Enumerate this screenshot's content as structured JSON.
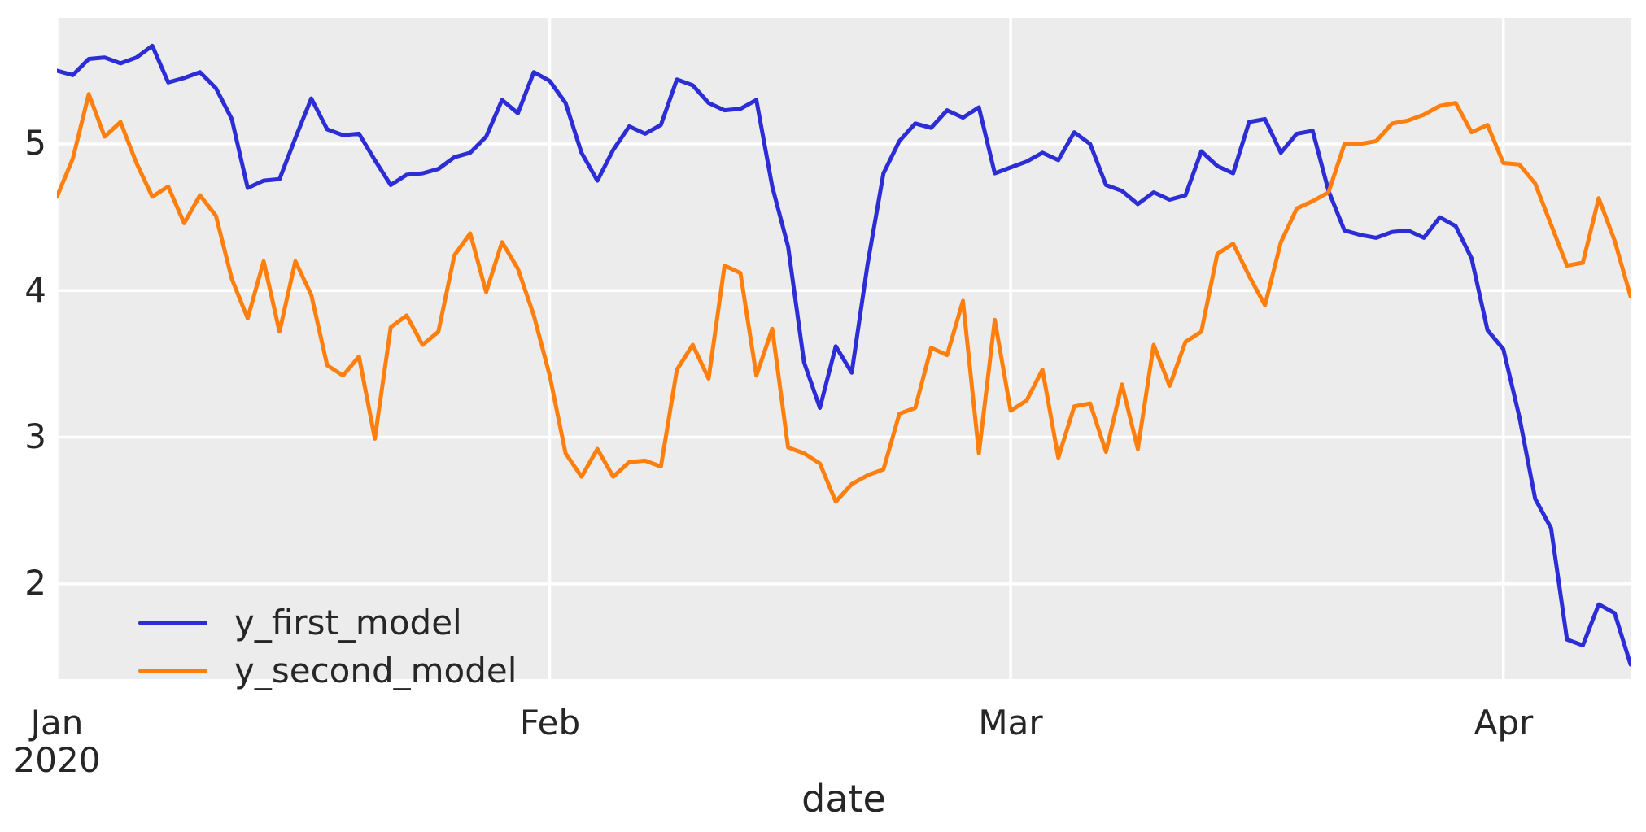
{
  "figure": {
    "background": "#ffffff",
    "plot_background": "#ececec",
    "grid_color": "#ffffff",
    "text_color": "#262626"
  },
  "axes": {
    "xlabel": "date",
    "y_ticks": [
      {
        "label": "5",
        "value": 5
      },
      {
        "label": "4",
        "value": 4
      },
      {
        "label": "3",
        "value": 3
      },
      {
        "label": "2",
        "value": 2
      }
    ],
    "x_ticks": [
      {
        "label": "Jan",
        "sub": "2020",
        "day_index": 0
      },
      {
        "label": "Feb",
        "sub": "",
        "day_index": 31
      },
      {
        "label": "Mar",
        "sub": "",
        "day_index": 60
      },
      {
        "label": "Apr",
        "sub": "",
        "day_index": 91
      }
    ]
  },
  "legend": {
    "items": [
      {
        "label": "y_first_model",
        "color": "#2d2dd6"
      },
      {
        "label": "y_second_model",
        "color": "#ff7f0e"
      }
    ]
  },
  "chart_data": {
    "type": "line",
    "title": "",
    "xlabel": "date",
    "ylabel": "",
    "x_start_date": "2020-01-01",
    "x_frequency": "daily",
    "x_end_date": "2020-04-09",
    "n_points": 100,
    "ylim": [
      1.35,
      5.86
    ],
    "xlim_days": [
      0,
      99
    ],
    "grid": true,
    "legend_position": "lower left",
    "series": [
      {
        "name": "y_first_model",
        "color": "#2d2dd6",
        "values": [
          5.5,
          5.47,
          5.58,
          5.59,
          5.55,
          5.59,
          5.67,
          5.42,
          5.45,
          5.49,
          5.38,
          5.17,
          4.7,
          4.75,
          4.76,
          5.04,
          5.31,
          5.1,
          5.06,
          5.07,
          4.89,
          4.72,
          4.79,
          4.8,
          4.83,
          4.91,
          4.94,
          5.05,
          5.3,
          5.21,
          5.49,
          5.43,
          5.28,
          4.94,
          4.75,
          4.96,
          5.12,
          5.07,
          5.13,
          5.44,
          5.4,
          5.28,
          5.23,
          5.24,
          5.3,
          4.71,
          4.3,
          3.51,
          3.2,
          3.62,
          3.44,
          4.18,
          4.8,
          5.02,
          5.14,
          5.11,
          5.23,
          5.18,
          5.25,
          4.8,
          4.84,
          4.88,
          4.94,
          4.89,
          5.08,
          5.0,
          4.72,
          4.68,
          4.59,
          4.67,
          4.62,
          4.65,
          4.95,
          4.85,
          4.8,
          5.15,
          5.17,
          4.94,
          5.07,
          5.09,
          4.68,
          4.41,
          4.38,
          4.36,
          4.4,
          4.41,
          4.36,
          4.5,
          4.44,
          4.22,
          3.73,
          3.6,
          3.14,
          2.58,
          2.38,
          1.62,
          1.58,
          1.86,
          1.8,
          1.45
        ]
      },
      {
        "name": "y_second_model",
        "color": "#ff7f0e",
        "values": [
          4.64,
          4.9,
          5.34,
          5.05,
          5.15,
          4.87,
          4.64,
          4.71,
          4.46,
          4.65,
          4.51,
          4.08,
          3.81,
          4.2,
          3.72,
          4.2,
          3.97,
          3.49,
          3.42,
          3.55,
          2.99,
          3.75,
          3.83,
          3.63,
          3.72,
          4.24,
          4.39,
          3.99,
          4.33,
          4.15,
          3.83,
          3.42,
          2.89,
          2.73,
          2.92,
          2.73,
          2.83,
          2.84,
          2.8,
          3.46,
          3.63,
          3.4,
          4.17,
          4.12,
          3.42,
          3.74,
          2.93,
          2.89,
          2.82,
          2.56,
          2.68,
          2.74,
          2.78,
          3.16,
          3.2,
          3.61,
          3.56,
          3.93,
          2.89,
          3.8,
          3.18,
          3.25,
          3.46,
          2.86,
          3.21,
          3.23,
          2.9,
          3.36,
          2.92,
          3.63,
          3.35,
          3.65,
          3.72,
          4.25,
          4.32,
          4.1,
          3.9,
          4.33,
          4.56,
          4.61,
          4.67,
          5.0,
          5.0,
          5.02,
          5.14,
          5.16,
          5.2,
          5.26,
          5.28,
          5.08,
          5.13,
          4.87,
          4.86,
          4.73,
          4.45,
          4.17,
          4.19,
          4.63,
          4.34,
          3.96
        ]
      }
    ]
  }
}
